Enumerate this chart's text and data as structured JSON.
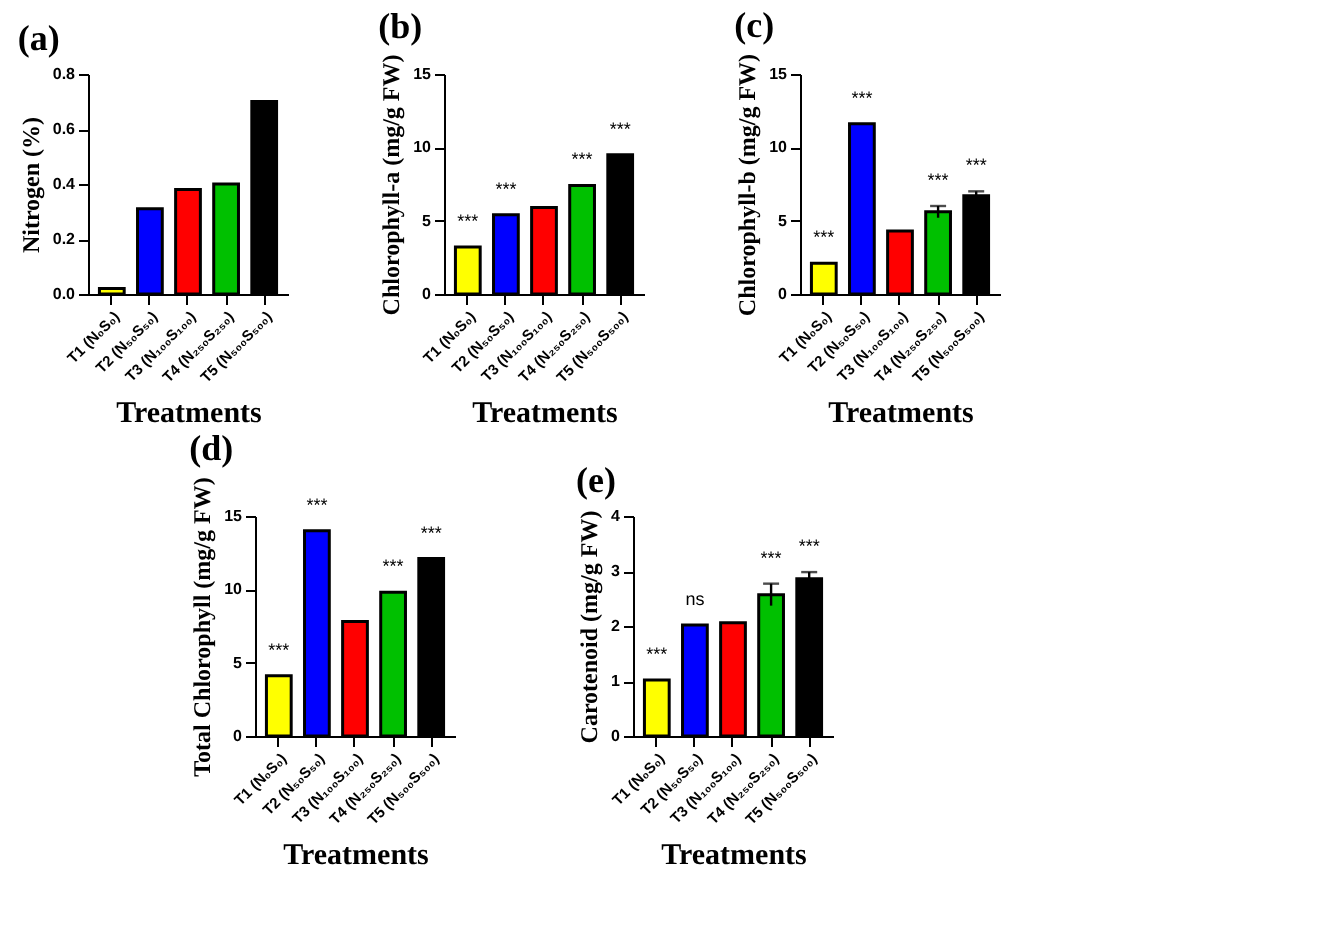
{
  "chart_data": [
    {
      "type": "bar",
      "title": "(a)",
      "xlabel": "Treatments",
      "ylabel": "Nitrogen (%)",
      "categories": [
        "T1 (N₀S₀)",
        "T2 (N₅₀S₅₀)",
        "T3 (N₁₀₀S₁₀₀)",
        "T4 (N₂₅₀S₂₅₀)",
        "T5 (N₅₀₀S₅₀₀)"
      ],
      "values": [
        0.02,
        0.31,
        0.38,
        0.4,
        0.7
      ],
      "colors": [
        "#ffff00",
        "#0000ff",
        "#ff0000",
        "#00c000",
        "#000000"
      ],
      "ylim": [
        0,
        0.8
      ],
      "yticks": [
        {
          "value": 0,
          "label": "0.0"
        },
        0.2,
        0.4,
        0.6,
        0.8
      ],
      "grid": false
    },
    {
      "type": "bar",
      "title": "(b)",
      "xlabel": "Treatments",
      "ylabel": "Chlorophyll-a (mg/g FW)",
      "categories": [
        "T1 (N₀S₀)",
        "T2 (N₅₀S₅₀)",
        "T3 (N₁₀₀S₁₀₀)",
        "T4 (N₂₅₀S₂₅₀)",
        "T5 (N₅₀₀S₅₀₀)"
      ],
      "values": [
        3.2,
        5.4,
        5.9,
        7.4,
        9.5
      ],
      "colors": [
        "#ffff00",
        "#0000ff",
        "#ff0000",
        "#00c000",
        "#000000"
      ],
      "ylim": [
        0,
        15
      ],
      "yticks": [
        0,
        5,
        10,
        15
      ],
      "grid": false,
      "annotations": [
        {
          "text": "***",
          "x": "T1 (N₀S₀)",
          "y": 3.2
        },
        {
          "text": "***",
          "x": "T2 (N₅₀S₅₀)",
          "y": 5.4
        },
        {
          "text": "***",
          "x": "T4 (N₂₅₀S₂₅₀)",
          "y": 7.4
        },
        {
          "text": "***",
          "x": "T5 (N₅₀₀S₅₀₀)",
          "y": 9.5
        }
      ]
    },
    {
      "type": "bar",
      "title": "(c)",
      "xlabel": "Treatments",
      "ylabel": "Chlorophyll-b (mg/g FW)",
      "categories": [
        "T1 (N₀S₀)",
        "T2 (N₅₀S₅₀)",
        "T3 (N₁₀₀S₁₀₀)",
        "T4 (N₂₅₀S₂₅₀)",
        "T5 (N₅₀₀S₅₀₀)"
      ],
      "values": [
        2.1,
        11.6,
        4.3,
        5.6,
        6.7
      ],
      "errors": [
        null,
        null,
        null,
        0.4,
        0.3
      ],
      "colors": [
        "#ffff00",
        "#0000ff",
        "#ff0000",
        "#00c000",
        "#000000"
      ],
      "ylim": [
        0,
        15
      ],
      "yticks": [
        0,
        5,
        10,
        15
      ],
      "grid": false,
      "annotations": [
        {
          "text": "***",
          "x": "T1 (N₀S₀)",
          "y": 2.1
        },
        {
          "text": "***",
          "x": "T2 (N₅₀S₅₀)",
          "y": 11.6
        },
        {
          "text": "***",
          "x": "T4 (N₂₅₀S₂₅₀)",
          "y": 6.0
        },
        {
          "text": "***",
          "x": "T5 (N₅₀₀S₅₀₀)",
          "y": 7.0
        }
      ]
    },
    {
      "type": "bar",
      "title": "(d)",
      "xlabel": "Treatments",
      "ylabel": "Total Chlorophyll (mg/g FW)",
      "categories": [
        "T1 (N₀S₀)",
        "T2 (N₅₀S₅₀)",
        "T3 (N₁₀₀S₁₀₀)",
        "T4 (N₂₅₀S₂₅₀)",
        "T5 (N₅₀₀S₅₀₀)"
      ],
      "values": [
        4.1,
        14.0,
        7.8,
        9.8,
        12.1
      ],
      "colors": [
        "#ffff00",
        "#0000ff",
        "#ff0000",
        "#00c000",
        "#000000"
      ],
      "ylim": [
        0,
        15
      ],
      "yticks": [
        0,
        5,
        10,
        15
      ],
      "grid": false,
      "annotations": [
        {
          "text": "***",
          "x": "T1 (N₀S₀)",
          "y": 4.1
        },
        {
          "text": "***",
          "x": "T2 (N₅₀S₅₀)",
          "y": 14.0
        },
        {
          "text": "***",
          "x": "T4 (N₂₅₀S₂₅₀)",
          "y": 9.8
        },
        {
          "text": "***",
          "x": "T5 (N₅₀₀S₅₀₀)",
          "y": 12.1
        }
      ]
    },
    {
      "type": "bar",
      "title": "(e)",
      "xlabel": "Treatments",
      "ylabel": "Carotenoid (mg/g FW)",
      "categories": [
        "T1 (N₀S₀)",
        "T2 (N₅₀S₅₀)",
        "T3 (N₁₀₀S₁₀₀)",
        "T4 (N₂₅₀S₂₅₀)",
        "T5 (N₅₀₀S₅₀₀)"
      ],
      "values": [
        1.02,
        2.02,
        2.06,
        2.57,
        2.86
      ],
      "errors": [
        null,
        null,
        null,
        0.2,
        0.12
      ],
      "colors": [
        "#ffff00",
        "#0000ff",
        "#ff0000",
        "#00c000",
        "#000000"
      ],
      "ylim": [
        0,
        4
      ],
      "yticks": [
        0,
        1,
        2,
        3,
        4
      ],
      "grid": false,
      "annotations": [
        {
          "text": "***",
          "x": "T1 (N₀S₀)",
          "y": 1.02
        },
        {
          "text": "ns",
          "x": "T2 (N₅₀S₅₀)",
          "y": 2.02
        },
        {
          "text": "***",
          "x": "T4 (N₂₅₀S₂₅₀)",
          "y": 2.77
        },
        {
          "text": "***",
          "x": "T5 (N₅₀₀S₅₀₀)",
          "y": 2.98
        }
      ]
    }
  ]
}
